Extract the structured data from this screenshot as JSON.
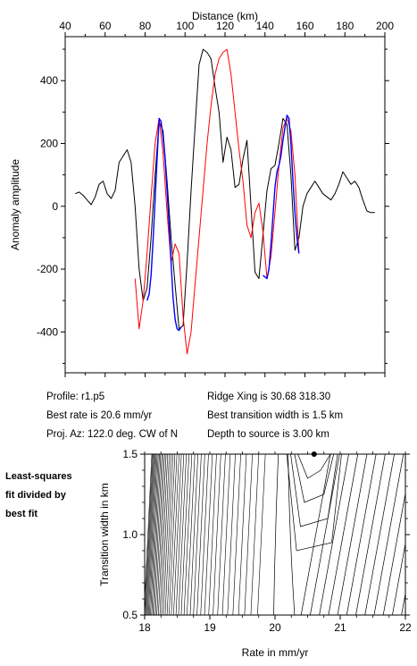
{
  "chart_data": [
    {
      "type": "line",
      "title": "",
      "xlabel": "Distance (km)",
      "ylabel": "Anomaly amplitude",
      "xlim": [
        40,
        200
      ],
      "ylim": [
        -530,
        540
      ],
      "xticks": [
        "40",
        "60",
        "80",
        "100",
        "120",
        "140",
        "160",
        "180",
        "200"
      ],
      "yticks": [
        "-400",
        "-200",
        "0",
        "200",
        "400"
      ],
      "series": [
        {
          "color": "#000000",
          "x": [
            45,
            47,
            49,
            51,
            53,
            55,
            57,
            59,
            61,
            63,
            65,
            67,
            69,
            71,
            73,
            75,
            77,
            79,
            81,
            83,
            85,
            87,
            89,
            91,
            93,
            95,
            97,
            99,
            101,
            103,
            105,
            107,
            109,
            111,
            113,
            115,
            117,
            119,
            121,
            123,
            125,
            127,
            129,
            131,
            133,
            135,
            137,
            139,
            141,
            143,
            145,
            147,
            149,
            151,
            153,
            155,
            157,
            159,
            161,
            163,
            165,
            167,
            169,
            171,
            173,
            175,
            177,
            179,
            181,
            183,
            185,
            187,
            189,
            191,
            193,
            195
          ],
          "y": [
            40,
            45,
            35,
            20,
            5,
            30,
            70,
            80,
            40,
            25,
            50,
            140,
            160,
            180,
            140,
            0,
            -200,
            -300,
            -260,
            -100,
            100,
            270,
            240,
            80,
            -100,
            -250,
            -390,
            -380,
            -180,
            50,
            250,
            450,
            500,
            490,
            470,
            380,
            300,
            140,
            220,
            180,
            60,
            70,
            150,
            210,
            0,
            -210,
            -230,
            -90,
            50,
            120,
            130,
            200,
            280,
            260,
            100,
            -140,
            -100,
            0,
            40,
            60,
            80,
            60,
            40,
            30,
            20,
            40,
            70,
            110,
            90,
            70,
            80,
            60,
            20,
            -15,
            -20,
            -20
          ]
        },
        {
          "color": "#ff0000",
          "x": [
            75,
            77,
            79,
            81,
            83,
            85,
            87,
            89,
            91,
            93,
            95,
            97,
            99,
            101,
            103,
            105,
            107,
            109,
            111,
            113,
            115,
            117,
            119,
            121,
            123,
            125,
            127,
            129,
            131,
            133,
            135,
            137,
            139,
            141,
            143,
            145,
            147,
            149,
            151,
            153,
            155,
            157
          ],
          "y": [
            -230,
            -390,
            -300,
            -150,
            30,
            200,
            280,
            170,
            -20,
            -180,
            -120,
            -150,
            -350,
            -470,
            -400,
            -250,
            -100,
            50,
            200,
            320,
            420,
            470,
            490,
            500,
            420,
            300,
            180,
            80,
            -60,
            -100,
            -20,
            10,
            -80,
            -230,
            -160,
            -20,
            130,
            250,
            280,
            240,
            100,
            -150
          ]
        },
        {
          "color": "#0000ff",
          "x": [
            81,
            82,
            83,
            84,
            85,
            86,
            87,
            88,
            89,
            90,
            91,
            92,
            93,
            94,
            95,
            96,
            97,
            98,
            139,
            140,
            141,
            142,
            143,
            144,
            145,
            146,
            147,
            148,
            149,
            150,
            151,
            152,
            153,
            154,
            155,
            156,
            157
          ],
          "y": [
            -300,
            -280,
            -220,
            -110,
            20,
            150,
            280,
            270,
            220,
            150,
            50,
            -60,
            -180,
            -290,
            -360,
            -390,
            -395,
            -385,
            -220,
            -225,
            -230,
            -200,
            -120,
            -30,
            60,
            110,
            130,
            160,
            210,
            250,
            290,
            280,
            200,
            80,
            -20,
            -100,
            -150
          ]
        }
      ]
    },
    {
      "type": "contour",
      "title": "",
      "xlabel": "Rate in mm/yr",
      "ylabel": "Transition width in km",
      "xlim": [
        18,
        22
      ],
      "ylim": [
        0.5,
        1.5
      ],
      "xticks": [
        "18",
        "19",
        "20",
        "21",
        "22"
      ],
      "yticks": [
        "0.5",
        "1.0",
        "1.5"
      ],
      "best_fit": {
        "x": 20.6,
        "y": 1.5
      },
      "legend_text": [
        "Least-squares",
        "fit divided by",
        "best fit"
      ]
    }
  ],
  "info": {
    "profile": "Profile: r1.p5",
    "ridge_xing": "Ridge Xing is 30.68 318.30",
    "best_rate": "Best rate is 20.6 mm/yr",
    "best_width": "Best transition width is 1.5 km",
    "proj_az": "Proj. Az: 122.0 deg. CW of N",
    "depth": "Depth to source is   3.00 km"
  }
}
